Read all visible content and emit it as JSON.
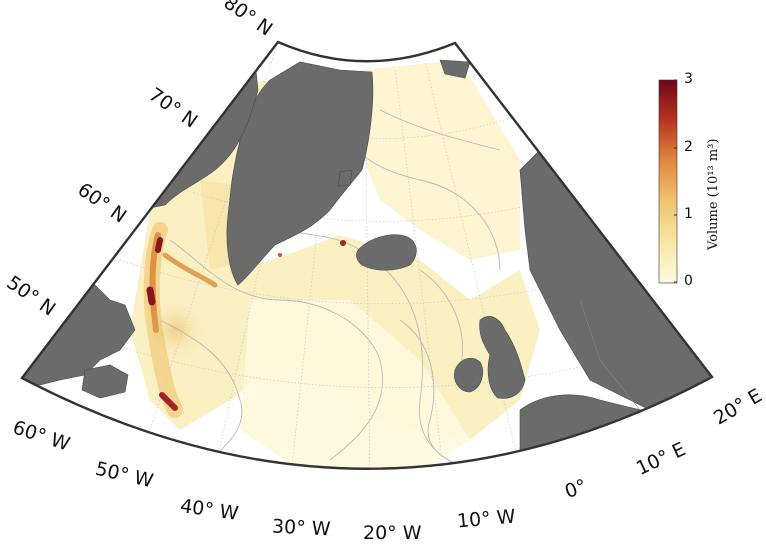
{
  "map": {
    "latitude_labels": [
      "80° N",
      "70° N",
      "60° N",
      "50° N"
    ],
    "longitude_labels": [
      "60° W",
      "50° W",
      "40° W",
      "30° W",
      "20° W",
      "10° W",
      "0°",
      "10° E",
      "20° E"
    ],
    "land_color": "#6b6b6b",
    "ocean_color": "#ffffff",
    "contour_color": "#b8b8b8"
  },
  "colorbar": {
    "ticks": [
      "0",
      "1",
      "2",
      "3"
    ],
    "title": "Volume (10¹³ m³)",
    "colors": [
      "#fffbe0",
      "#f7e6a6",
      "#f1c46f",
      "#e0893f",
      "#b9351f",
      "#6e0618"
    ]
  }
}
